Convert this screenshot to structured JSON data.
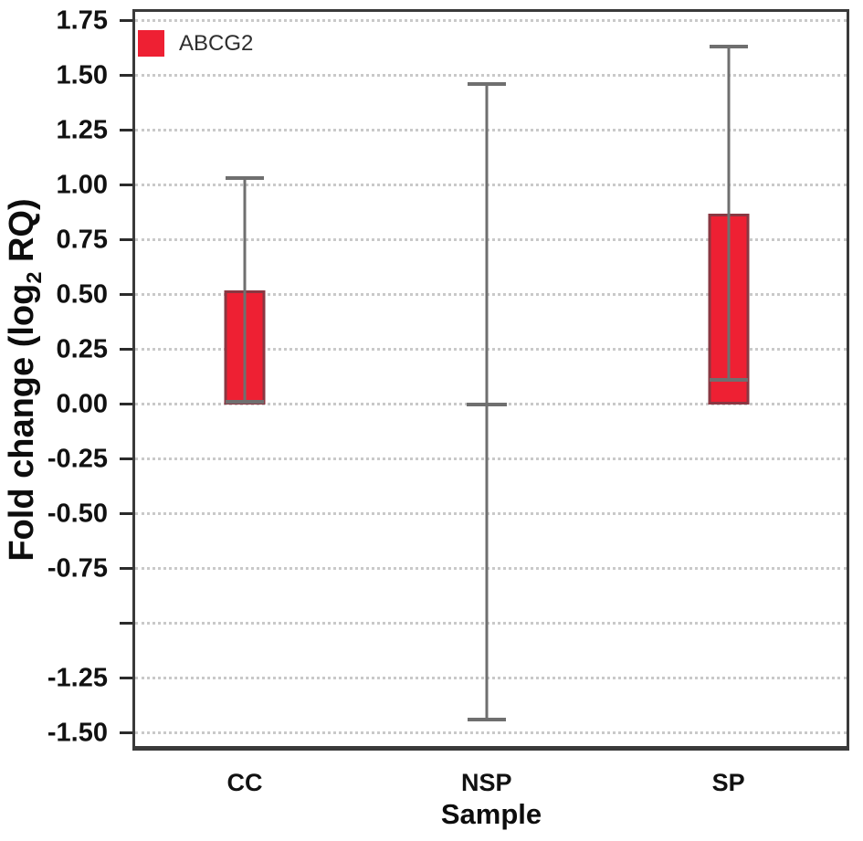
{
  "chart_data": {
    "type": "bar",
    "title": "",
    "xlabel": "Sample",
    "ylabel": "Fold change (log2 RQ)",
    "ylabel_pre": "Fold change (log",
    "ylabel_sub": "2",
    "ylabel_post": " RQ)",
    "legend": {
      "label": "ABCG2",
      "position": "top-left-inside"
    },
    "grid": "horizontal-dotted",
    "ylim": [
      -1.56,
      1.79
    ],
    "ytick_step": 0.25,
    "yticks": [
      {
        "v": 1.75,
        "label": "1.75"
      },
      {
        "v": 1.5,
        "label": "1.50"
      },
      {
        "v": 1.25,
        "label": "1.25"
      },
      {
        "v": 1.0,
        "label": "1.00"
      },
      {
        "v": 0.75,
        "label": "0.75"
      },
      {
        "v": 0.5,
        "label": "0.50"
      },
      {
        "v": 0.25,
        "label": "0.25"
      },
      {
        "v": 0.0,
        "label": "0.00"
      },
      {
        "v": -0.25,
        "label": "-0.25"
      },
      {
        "v": -0.5,
        "label": "-0.50"
      },
      {
        "v": -0.75,
        "label": "-0.75"
      },
      {
        "v": -1.0,
        "label": ""
      },
      {
        "v": -1.25,
        "label": "-1.25"
      },
      {
        "v": -1.5,
        "label": "-1.50"
      }
    ],
    "categories": [
      "CC",
      "NSP",
      "SP"
    ],
    "series": [
      {
        "category": "CC",
        "value": 0.52,
        "err_high": 1.03,
        "err_low": 0.01,
        "x_frac": 0.154
      },
      {
        "category": "NSP",
        "value": 0.0,
        "err_high": 1.46,
        "err_low": -1.44,
        "x_frac": 0.494
      },
      {
        "category": "SP",
        "value": 0.87,
        "err_high": 1.63,
        "err_low": 0.11,
        "x_frac": 0.834
      }
    ],
    "colors": {
      "bar_fill": "#ee2033",
      "bar_border": "#8a3742",
      "error_bar": "#6f6f6f",
      "grid_line": "#c9c9c9",
      "frame": "#3a3a3a"
    }
  }
}
